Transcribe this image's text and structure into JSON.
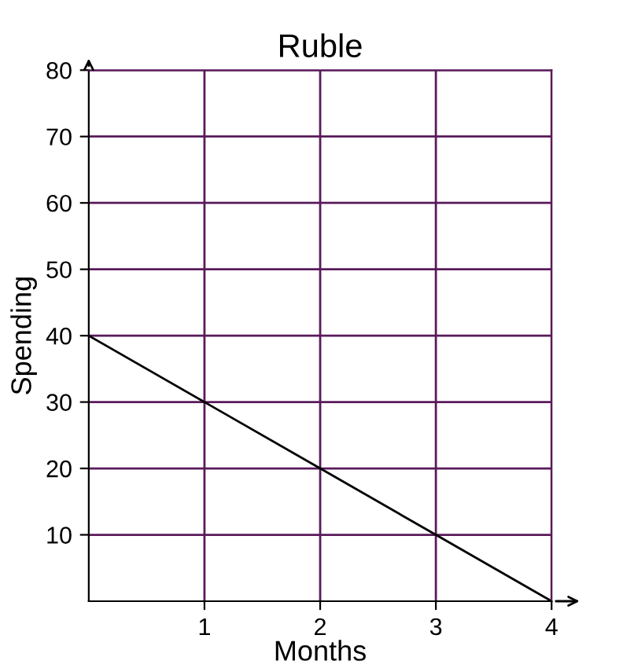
{
  "chart_data": {
    "type": "line",
    "title": "Ruble",
    "xlabel": "Months",
    "ylabel": "Spending",
    "x": [
      0,
      1,
      2,
      3,
      4
    ],
    "series": [
      {
        "color": "#000000",
        "values": [
          40,
          30,
          20,
          10,
          0
        ]
      }
    ],
    "xlim": [
      0,
      4
    ],
    "ylim": [
      0,
      80
    ],
    "xticks": [
      1,
      2,
      3,
      4
    ],
    "yticks": [
      10,
      20,
      30,
      40,
      50,
      60,
      70,
      80
    ],
    "grid": true,
    "marker": "none",
    "line_style": "solid"
  }
}
